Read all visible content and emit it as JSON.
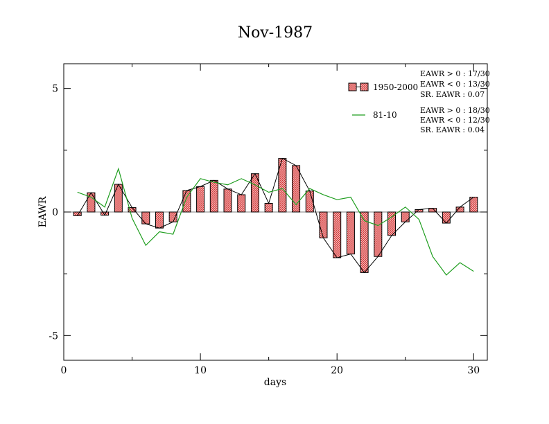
{
  "chart_data": {
    "type": "bar",
    "title": "Nov-1987",
    "xlabel": "days",
    "ylabel": "EAWR",
    "xlim": [
      0,
      31
    ],
    "ylim": [
      -6,
      6
    ],
    "xticks": [
      0,
      10,
      20,
      30
    ],
    "yticks": [
      -5,
      0,
      5
    ],
    "grid": false,
    "legend_position": "top-right",
    "x": [
      1,
      2,
      3,
      4,
      5,
      6,
      7,
      8,
      9,
      10,
      11,
      12,
      13,
      14,
      15,
      16,
      17,
      18,
      19,
      20,
      21,
      22,
      23,
      24,
      25,
      26,
      27,
      28,
      29,
      30
    ],
    "series": [
      {
        "name": "1950-2000",
        "type": "bar",
        "color": "#e06060",
        "values": [
          -0.15,
          0.78,
          -0.13,
          1.12,
          0.18,
          -0.48,
          -0.65,
          -0.4,
          0.87,
          1.03,
          1.28,
          0.93,
          0.7,
          1.55,
          0.35,
          2.17,
          1.88,
          0.85,
          -1.05,
          -1.85,
          -1.7,
          -2.45,
          -1.8,
          -0.95,
          -0.4,
          0.1,
          0.15,
          -0.45,
          0.2,
          0.6
        ]
      },
      {
        "name": "81-10",
        "type": "line",
        "color": "#1f9e1f",
        "values": [
          0.8,
          0.6,
          0.2,
          1.75,
          -0.25,
          -1.35,
          -0.8,
          -0.9,
          0.6,
          1.35,
          1.2,
          1.1,
          1.35,
          1.1,
          0.8,
          0.95,
          0.3,
          0.95,
          0.7,
          0.5,
          0.6,
          -0.35,
          -0.55,
          -0.2,
          0.2,
          -0.3,
          -1.8,
          -2.55,
          -2.05,
          -2.4
        ]
      }
    ],
    "stats_1950_2000": [
      "EAWR > 0 : 17/30",
      "EAWR < 0 : 13/30",
      "SR. EAWR :  0.07"
    ],
    "stats_81_10": [
      "EAWR > 0 : 18/30",
      "EAWR < 0 : 12/30",
      "SR. EAWR :  0.04"
    ],
    "colors": {
      "bar_fill": "#e06060",
      "bar_stroke": "#000000",
      "connector": "#000000",
      "line": "#1f9e1f"
    }
  }
}
